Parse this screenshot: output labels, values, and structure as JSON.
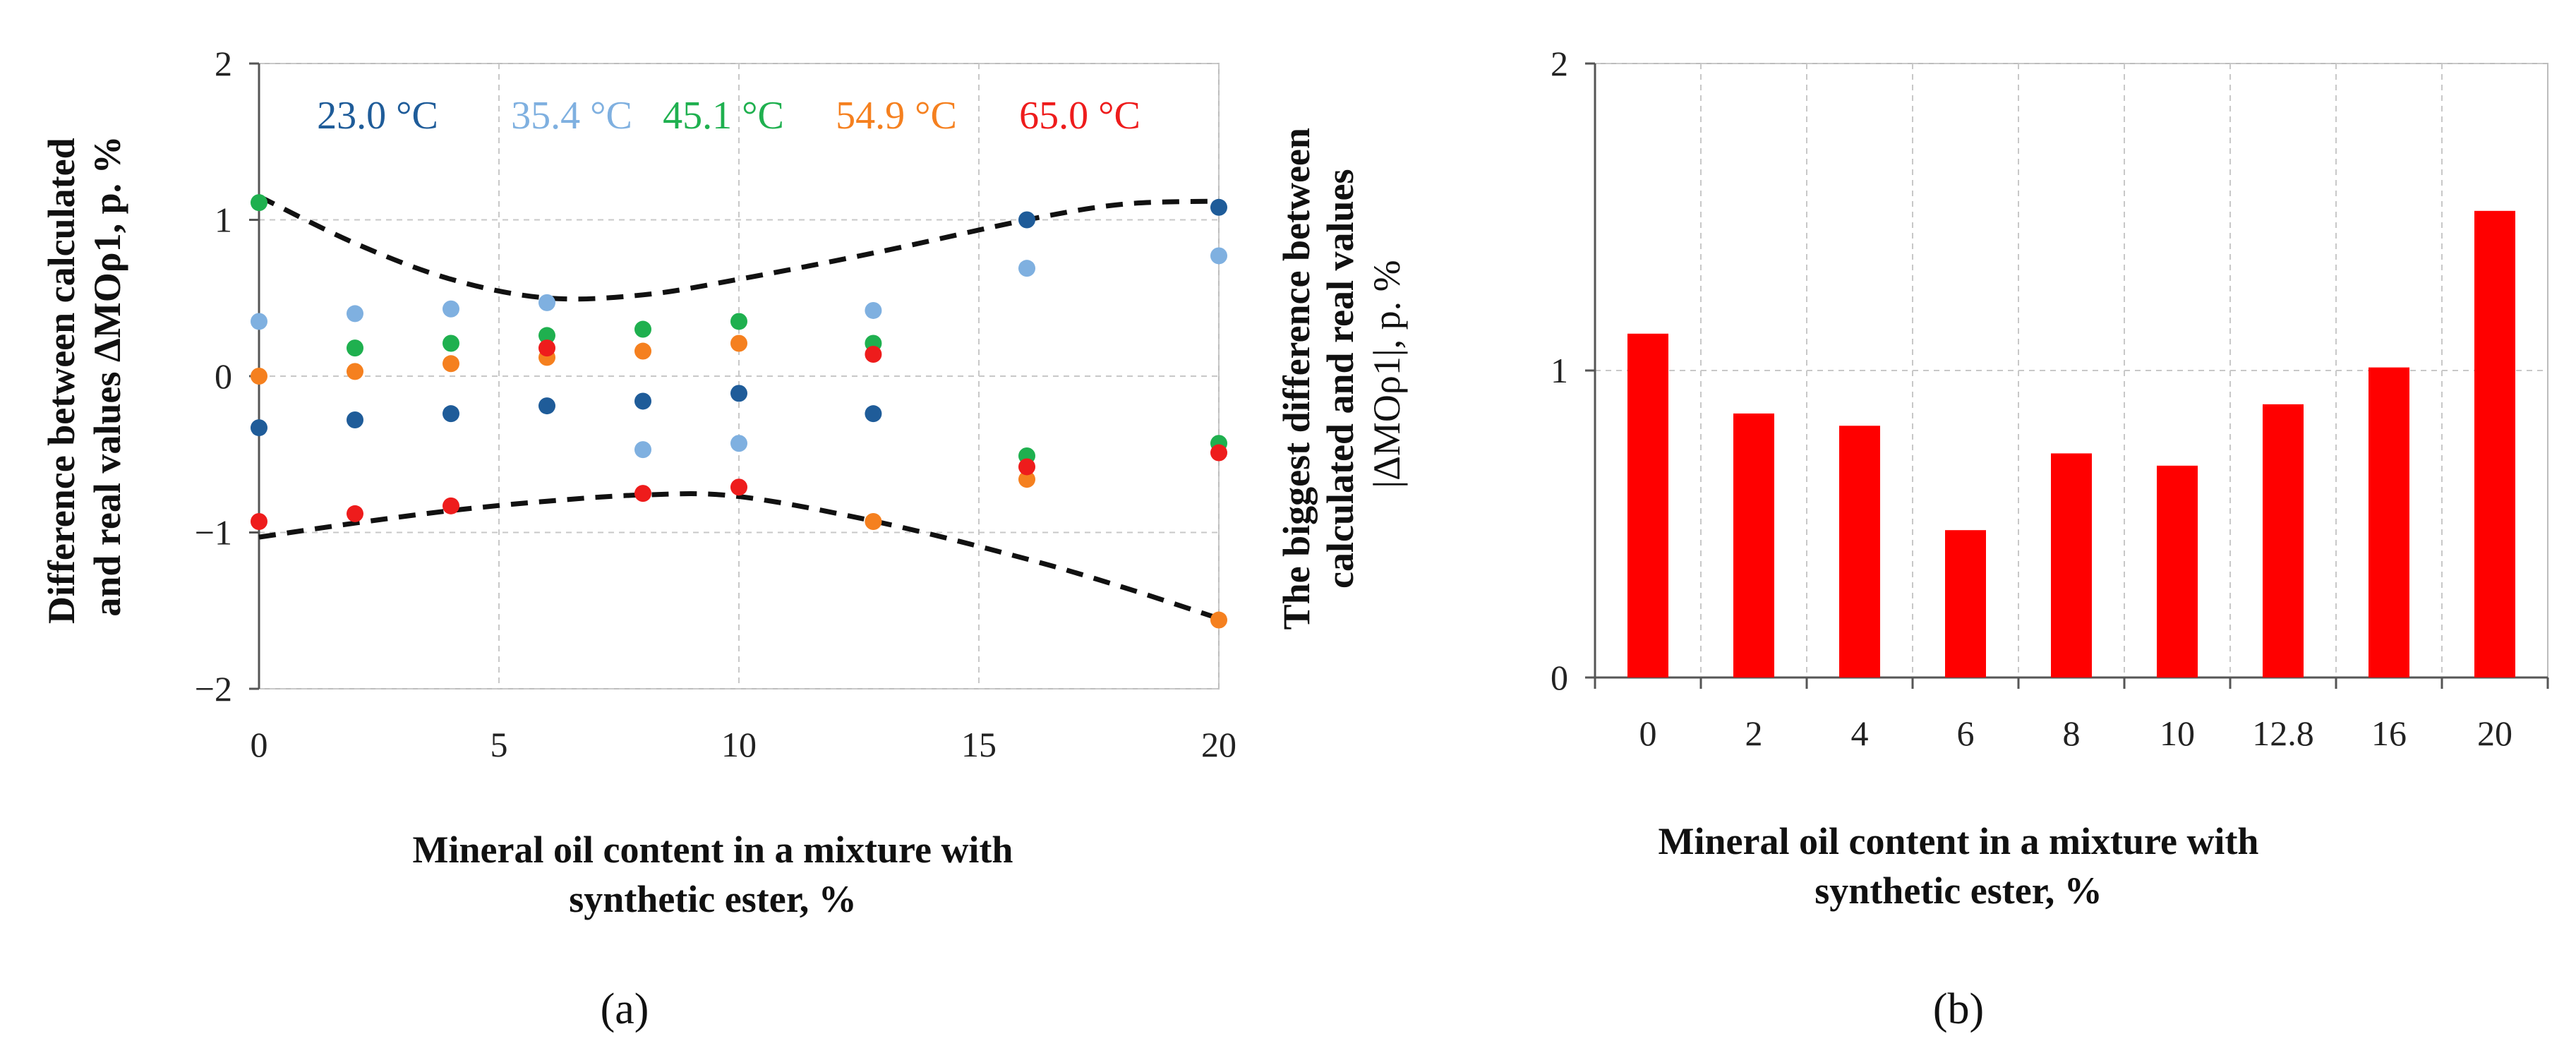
{
  "chart_data": [
    {
      "panel": "a",
      "type": "scatter",
      "panel_label": "(a)",
      "xlabel": [
        "Mineral oil content in a mixture with",
        "synthetic ester, %"
      ],
      "ylabel": [
        "Difference between calculated",
        "and real values ΔMOρ1, p. %"
      ],
      "xlim": [
        0,
        20
      ],
      "ylim": [
        -2,
        2
      ],
      "xticks": [
        0,
        5,
        10,
        15,
        20
      ],
      "yticks": [
        -2,
        -1,
        0,
        1,
        2
      ],
      "xtick_labels": [
        "0",
        "5",
        "10",
        "15",
        "20"
      ],
      "ytick_labels": [
        "−2",
        "−1",
        "0",
        "1",
        "2"
      ],
      "grid": true,
      "x": [
        0,
        2,
        4,
        6,
        8,
        10,
        12.8,
        16,
        20
      ],
      "series": [
        {
          "name": "23.0 °C",
          "color": "#1f5c99",
          "values": [
            -0.33,
            -0.28,
            -0.24,
            -0.19,
            -0.16,
            -0.11,
            -0.24,
            1.0,
            1.08
          ]
        },
        {
          "name": "35.4 °C",
          "color": "#7fb0e0",
          "values": [
            0.35,
            0.4,
            0.43,
            0.47,
            -0.47,
            -0.43,
            0.42,
            0.69,
            0.77
          ]
        },
        {
          "name": "45.1 °C",
          "color": "#1fb04f",
          "values": [
            1.11,
            0.18,
            0.21,
            0.26,
            0.3,
            0.35,
            0.21,
            -0.51,
            -0.43
          ]
        },
        {
          "name": "54.9 °C",
          "color": "#f5801f",
          "values": [
            0.0,
            0.03,
            0.08,
            0.12,
            0.16,
            0.21,
            -0.93,
            -0.66,
            -1.56
          ]
        },
        {
          "name": "65.0 °C",
          "color": "#ee1c1c",
          "values": [
            -0.93,
            -0.88,
            -0.83,
            0.18,
            -0.75,
            -0.71,
            0.14,
            -0.58,
            -0.49
          ]
        }
      ],
      "envelope": {
        "upper": {
          "x": [
            0,
            2,
            4,
            6,
            8,
            10,
            13,
            16,
            18,
            20
          ],
          "y": [
            1.15,
            0.85,
            0.62,
            0.5,
            0.52,
            0.62,
            0.8,
            1.0,
            1.1,
            1.12
          ]
        },
        "lower": {
          "x": [
            0,
            2,
            4,
            6,
            8,
            10,
            13,
            16,
            18,
            20
          ],
          "y": [
            -1.03,
            -0.94,
            -0.86,
            -0.8,
            -0.76,
            -0.77,
            -0.94,
            -1.17,
            -1.35,
            -1.55
          ]
        }
      }
    },
    {
      "panel": "b",
      "type": "bar",
      "panel_label": "(b)",
      "xlabel": [
        "Mineral oil content in a mixture with",
        "synthetic ester, %"
      ],
      "ylabel": [
        "The biggest difference between",
        "calculated and real values",
        "|ΔMOρ1|, p. %"
      ],
      "ylim": [
        0,
        2
      ],
      "yticks": [
        0,
        1,
        2
      ],
      "ytick_labels": [
        "0",
        "1",
        "2"
      ],
      "grid": true,
      "categories": [
        "0",
        "2",
        "4",
        "6",
        "8",
        "10",
        "12.8",
        "16",
        "20"
      ],
      "values": [
        1.12,
        0.86,
        0.82,
        0.48,
        0.73,
        0.69,
        0.89,
        1.01,
        1.52
      ],
      "bar_color": "#ff0000"
    }
  ]
}
